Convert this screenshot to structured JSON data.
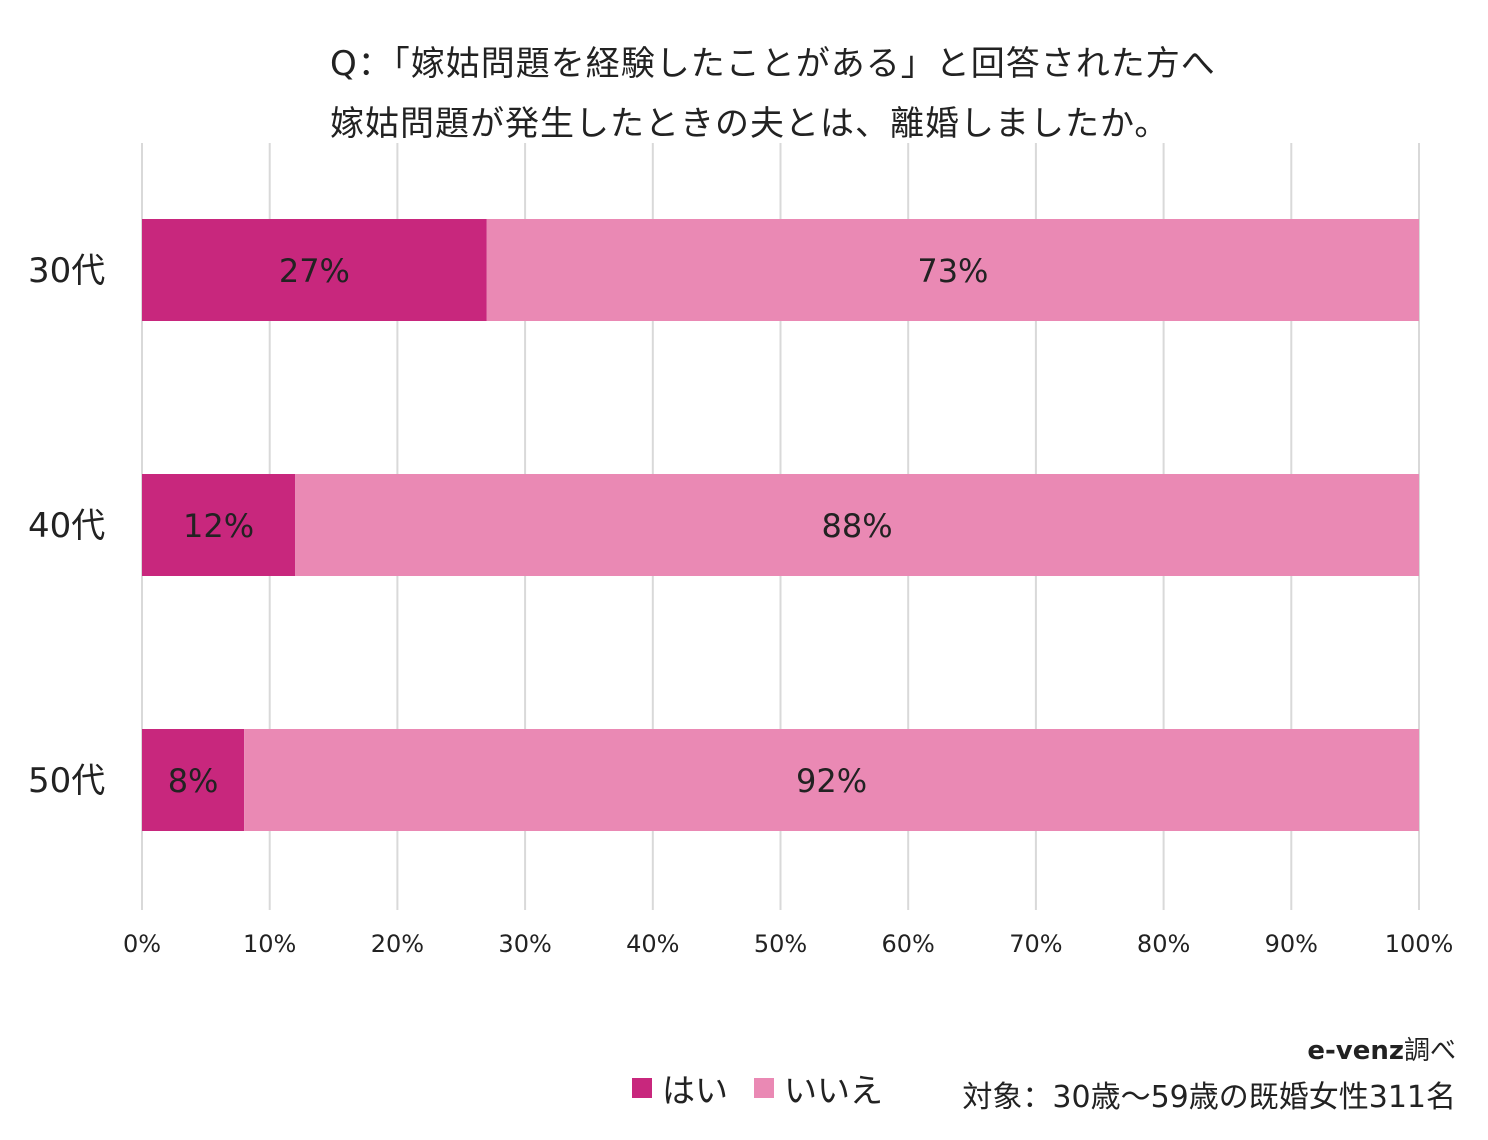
{
  "title": {
    "line1": "Q：「嫁姑問題を経験したことがある」と回答された方へ",
    "line2": "嫁姑問題が発生したときの夫とは、離婚しましたか。"
  },
  "legend": [
    {
      "label": "はい",
      "color": "#C8277D"
    },
    {
      "label": "いいえ",
      "color": "#EA89B4"
    }
  ],
  "source": {
    "brand": "e-venz",
    "suffix": "調べ",
    "note": "対象：30歳〜59歳の既婚女性311名"
  },
  "chart_data": {
    "type": "bar",
    "orientation": "horizontal",
    "stacked": true,
    "categories": [
      "30代",
      "40代",
      "50代"
    ],
    "series": [
      {
        "name": "はい",
        "values": [
          27,
          12,
          8
        ],
        "color": "#C8277D",
        "labels": [
          "27%",
          "12%",
          "8%"
        ]
      },
      {
        "name": "いいえ",
        "values": [
          73,
          88,
          92
        ],
        "color": "#EA89B4",
        "labels": [
          "73%",
          "88%",
          "92%"
        ]
      }
    ],
    "xlim": [
      0,
      100
    ],
    "xticks": [
      0,
      10,
      20,
      30,
      40,
      50,
      60,
      70,
      80,
      90,
      100
    ],
    "xtick_labels": [
      "0%",
      "10%",
      "20%",
      "30%",
      "40%",
      "50%",
      "60%",
      "70%",
      "80%",
      "90%",
      "100%"
    ],
    "grid": true,
    "legend_position": "bottom-center"
  }
}
